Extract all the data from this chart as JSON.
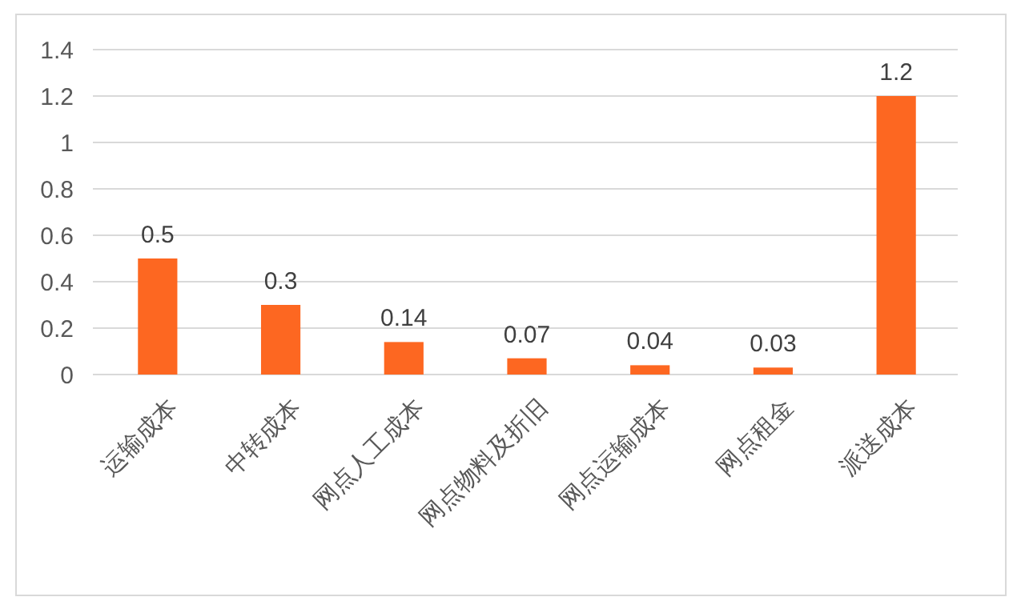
{
  "chart_data": {
    "type": "bar",
    "categories": [
      "运输成本",
      "中转成本",
      "网点人工成本",
      "网点物料及折旧",
      "网点运输成本",
      "网点租金",
      "派送成本"
    ],
    "values": [
      0.5,
      0.3,
      0.14,
      0.07,
      0.04,
      0.03,
      1.2
    ],
    "color": "#fd6721",
    "ylim": [
      0,
      1.4
    ],
    "yticks": [
      0,
      0.2,
      0.4,
      0.6,
      0.8,
      1,
      1.2,
      1.4
    ],
    "grid": "y",
    "data_labels": true
  }
}
